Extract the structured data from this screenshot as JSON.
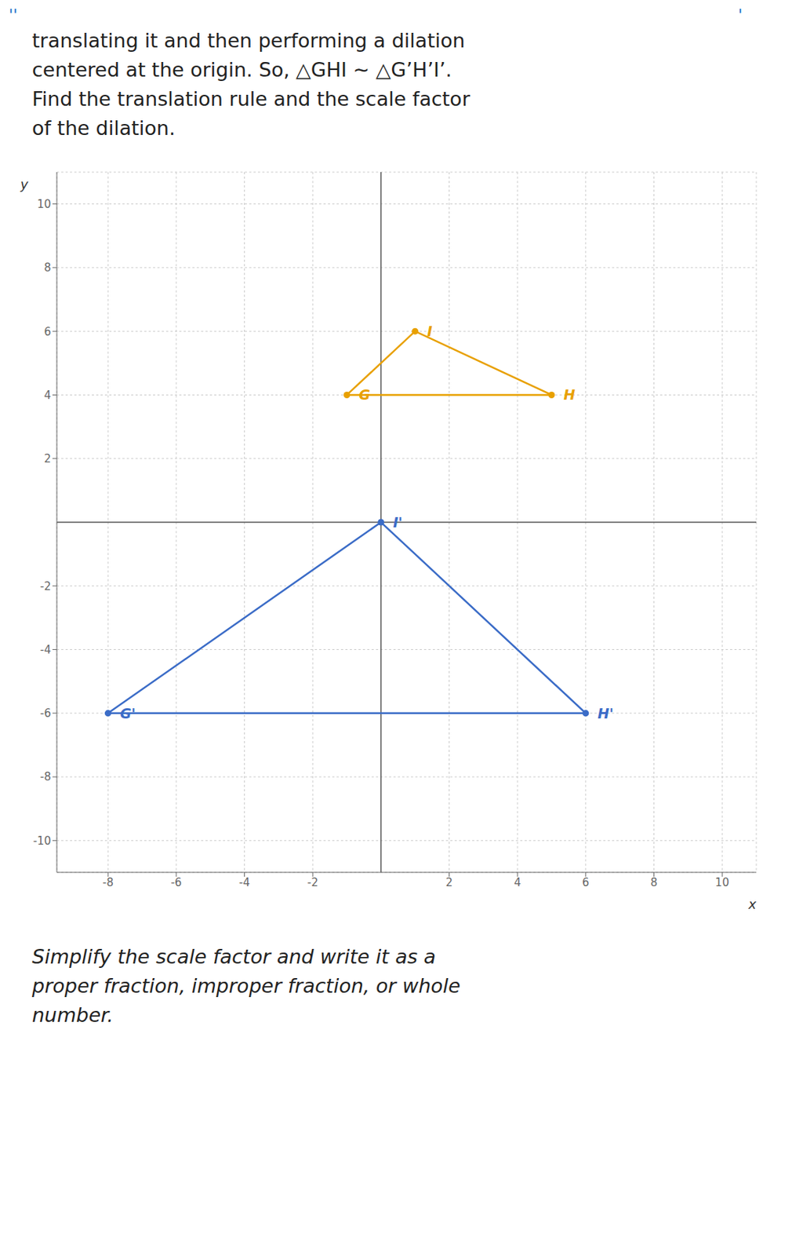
{
  "chart_data": {
    "type": "scatter",
    "title": [
      "translating it and then performing a dilation",
      "centered at the origin. So, △GHI ∼ △G’H’I’.",
      "Find the translation rule and the scale factor",
      "of the dilation."
    ],
    "subtitle": [
      "Simplify the scale factor and write it as a",
      "proper fraction, improper fraction, or whole",
      "number."
    ],
    "annotations": [
      "''",
      "'"
    ],
    "x_label": "x",
    "y_label": "y",
    "xlim": [
      -9.5,
      11
    ],
    "ylim": [
      -11,
      11
    ],
    "xticks": [
      -8,
      -6,
      -4,
      -2,
      2,
      4,
      6,
      8,
      10
    ],
    "yticks": [
      -10,
      -8,
      -6,
      -4,
      -2,
      2,
      4,
      6,
      8,
      10
    ],
    "grid": true,
    "series": [
      {
        "type": "polygon",
        "color": "#E8A000",
        "x": [
          -1,
          5,
          1
        ],
        "y": [
          4,
          4,
          6
        ],
        "labels": [
          "G",
          "H",
          "I"
        ],
        "marker": "circle",
        "line_style": "solid"
      },
      {
        "type": "polygon",
        "color": "#3B6CC7",
        "x": [
          -8,
          6,
          0
        ],
        "y": [
          -6,
          -6,
          0
        ],
        "labels": [
          "G'",
          "H'",
          "I'"
        ],
        "marker": "circle",
        "line_style": "solid"
      }
    ]
  }
}
